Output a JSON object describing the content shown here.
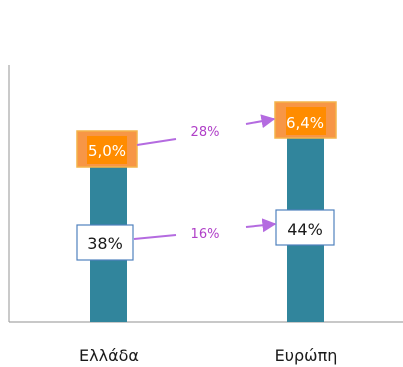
{
  "chart_data": {
    "type": "bar",
    "categories": [
      "Ελλάδα",
      "Ευρώπη"
    ],
    "series": [
      {
        "values": [
          38,
          44
        ],
        "labels": [
          "38%",
          "44%"
        ]
      },
      {
        "values": [
          5.0,
          6.4
        ],
        "labels": [
          "5,0%",
          "6,4%"
        ]
      }
    ],
    "annotations": [
      {
        "text": "28%",
        "between": "top labels"
      },
      {
        "text": "16%",
        "between": "bottom labels"
      }
    ],
    "title": "",
    "xlabel": "",
    "ylabel": "",
    "grid": false,
    "legend": "none",
    "colors": {
      "bar": "#31859c",
      "top_box_fill": "#f79646",
      "top_box_inner": "#ff8c00",
      "top_box_border": "#f4b34a",
      "bottom_box_border": "#4f81bd",
      "arrow": "#b46be0",
      "growth_text": "#b040c8",
      "axis": "#a6a6a6"
    }
  }
}
